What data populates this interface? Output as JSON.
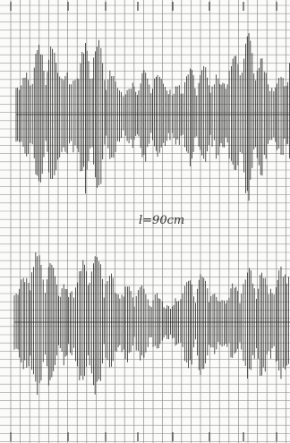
{
  "record": {
    "annotation": "l=90cm",
    "ink_color": "#2a2a2a",
    "paper_color": "#fbfbf9",
    "grid_color": "#8c8c8c"
  }
}
